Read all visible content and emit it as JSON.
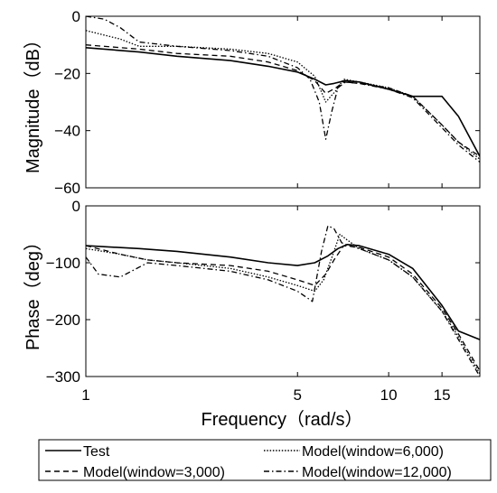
{
  "chart_data": [
    {
      "type": "line",
      "xscale": "log",
      "xlim": [
        1,
        20
      ],
      "x_ticks": [
        1,
        5,
        10,
        15
      ],
      "x_tick_labels": [
        "1",
        "5",
        "10",
        "15"
      ],
      "xlabel": "",
      "ylabel": "Magnitude（dB）",
      "ylim": [
        -60,
        0
      ],
      "y_ticks": [
        0,
        -20,
        -40,
        -60
      ],
      "y_tick_labels": [
        "0",
        "−20",
        "−40",
        "−60"
      ],
      "grid": false,
      "series": [
        {
          "name": "Test",
          "style": "solid",
          "x": [
            1,
            1.5,
            2,
            3,
            4,
            5,
            5.7,
            6.2,
            6.6,
            7.2,
            8,
            10,
            12,
            15,
            17,
            20
          ],
          "y": [
            -11,
            -12.5,
            -14,
            -15.5,
            -17.5,
            -19.5,
            -22,
            -24,
            -23.5,
            -22.5,
            -23,
            -25.5,
            -28,
            -28,
            -35,
            -49
          ]
        },
        {
          "name": "Model(window=3,000)",
          "style": "dashed",
          "x": [
            1,
            1.5,
            2,
            3,
            4,
            5,
            5.7,
            6.2,
            6.7,
            7.1,
            8,
            10,
            12,
            15,
            17,
            20
          ],
          "y": [
            -10,
            -11.5,
            -13,
            -14,
            -16,
            -19,
            -22.5,
            -27,
            -25,
            -23,
            -23.5,
            -25,
            -28,
            -38,
            -44,
            -49
          ]
        },
        {
          "name": "Model(window=6,000)",
          "style": "dotted",
          "x": [
            1,
            1.3,
            1.5,
            2,
            3,
            4,
            5,
            5.7,
            6.2,
            6.7,
            7.1,
            8,
            10,
            12,
            15,
            17,
            20
          ],
          "y": [
            -5,
            -8,
            -10.5,
            -10.5,
            -11.5,
            -13,
            -16,
            -21,
            -30,
            -26,
            -22,
            -23,
            -25,
            -28,
            -38,
            -44,
            -50
          ]
        },
        {
          "name": "Model(window=12,000)",
          "style": "dashdot",
          "x": [
            1,
            1.15,
            1.3,
            1.5,
            2,
            3,
            4,
            5,
            5.5,
            5.9,
            6.2,
            6.5,
            6.8,
            7.2,
            8,
            10,
            12,
            15,
            17,
            20
          ],
          "y": [
            0,
            -1,
            -4,
            -9,
            -10.5,
            -12,
            -14,
            -18,
            -22,
            -30,
            -43,
            -33,
            -25,
            -23,
            -23.5,
            -25.5,
            -28.5,
            -39,
            -45,
            -51
          ]
        }
      ]
    },
    {
      "type": "line",
      "xscale": "log",
      "xlim": [
        1,
        20
      ],
      "x_ticks": [
        1,
        5,
        10,
        15
      ],
      "x_tick_labels": [
        "1",
        "5",
        "10",
        "15"
      ],
      "xlabel": "Frequency（rad/s）",
      "ylabel": "Phase（deg）",
      "ylim": [
        -300,
        0
      ],
      "y_ticks": [
        0,
        -100,
        -200,
        -300
      ],
      "y_tick_labels": [
        "0",
        "−100",
        "−200",
        "−300"
      ],
      "grid": false,
      "series": [
        {
          "name": "Test",
          "style": "solid",
          "x": [
            1,
            1.5,
            2,
            3,
            4,
            5,
            5.7,
            6.3,
            6.8,
            7.3,
            8,
            10,
            12,
            15,
            17,
            20
          ],
          "y": [
            -70,
            -75,
            -80,
            -90,
            -100,
            -105,
            -100,
            -88,
            -75,
            -68,
            -70,
            -85,
            -110,
            -175,
            -220,
            -235
          ]
        },
        {
          "name": "Model(window=3,000)",
          "style": "dashed",
          "x": [
            1,
            1.3,
            1.6,
            2,
            3,
            4,
            5,
            5.7,
            6.2,
            6.6,
            7.1,
            8,
            10,
            12,
            15,
            17,
            20
          ],
          "y": [
            -70,
            -85,
            -95,
            -100,
            -105,
            -115,
            -130,
            -140,
            -120,
            -95,
            -70,
            -73,
            -90,
            -120,
            -180,
            -225,
            -290
          ]
        },
        {
          "name": "Model(window=6,000)",
          "style": "dotted",
          "x": [
            1,
            1.3,
            1.6,
            2,
            3,
            4,
            5,
            5.7,
            6.1,
            6.5,
            6.9,
            7.3,
            8,
            10,
            12,
            15,
            17,
            20
          ],
          "y": [
            -75,
            -85,
            -95,
            -100,
            -110,
            -125,
            -140,
            -150,
            -130,
            -90,
            -50,
            -60,
            -75,
            -95,
            -125,
            -185,
            -230,
            -295
          ]
        },
        {
          "name": "Model(window=12,000)",
          "style": "dashdot",
          "x": [
            1,
            1.1,
            1.3,
            1.6,
            2,
            3,
            4,
            5,
            5.6,
            6,
            6.3,
            6.6,
            7,
            7.4,
            8,
            10,
            12,
            15,
            17,
            20
          ],
          "y": [
            -90,
            -120,
            -125,
            -100,
            -105,
            -115,
            -130,
            -150,
            -168,
            -80,
            -35,
            -40,
            -65,
            -70,
            -75,
            -95,
            -125,
            -185,
            -235,
            -300
          ]
        }
      ]
    }
  ],
  "legend": {
    "placement": "bottom",
    "entries": [
      {
        "label": "Test",
        "style": "solid"
      },
      {
        "label": "Model(window=6,000)",
        "style": "dotted"
      },
      {
        "label": "Model(window=3,000)",
        "style": "dashed"
      },
      {
        "label": "Model(window=12,000)",
        "style": "dashdot"
      }
    ]
  }
}
